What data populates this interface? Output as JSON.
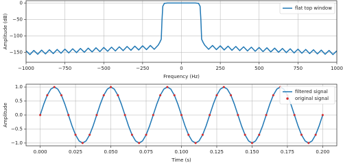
{
  "chart_data": [
    {
      "type": "line",
      "xlabel": "Frequency (Hz)",
      "ylabel": "Amplitude (dB)",
      "x": [
        -1000,
        -975,
        -950,
        -925,
        -900,
        -875,
        -850,
        -825,
        -800,
        -775,
        -750,
        -725,
        -700,
        -675,
        -650,
        -625,
        -600,
        -575,
        -550,
        -525,
        -500,
        -475,
        -450,
        -425,
        -400,
        -375,
        -350,
        -325,
        -300,
        -275,
        -250,
        -225,
        -200,
        -175,
        -150,
        -140,
        -130,
        -125,
        -120,
        -110,
        -90,
        0,
        90,
        110,
        120,
        125,
        130,
        140,
        150,
        175,
        200,
        225,
        250,
        275,
        300,
        325,
        350,
        375,
        400,
        425,
        450,
        475,
        500,
        525,
        550,
        575,
        600,
        625,
        650,
        675,
        700,
        725,
        750,
        775,
        800,
        825,
        850,
        875,
        900,
        925,
        950,
        975,
        1000
      ],
      "series": [
        {
          "name": "flat top window",
          "color": "#1f77b4",
          "values": [
            -145,
            -156.5,
            -144,
            -155.5,
            -143,
            -154.5,
            -142,
            -153.5,
            -141,
            -152.5,
            -140,
            -151.5,
            -139,
            -150.5,
            -138,
            -149.5,
            -137,
            -148.5,
            -136,
            -147.5,
            -135,
            -146.5,
            -134,
            -145.5,
            -133,
            -144.5,
            -132,
            -143.5,
            -131,
            -142.5,
            -130,
            -141.5,
            -129,
            -140.5,
            -128,
            -120,
            -110,
            -50,
            -10,
            -1,
            0,
            0,
            0,
            -1,
            -10,
            -50,
            -110,
            -120,
            -128,
            -140.5,
            -129,
            -141.5,
            -130,
            -142.5,
            -131,
            -143.5,
            -132,
            -144.5,
            -133,
            -145.5,
            -134,
            -146.5,
            -135,
            -147.5,
            -136,
            -148.5,
            -137,
            -149.5,
            -138,
            -150.5,
            -139,
            -151.5,
            -140,
            -152.5,
            -141,
            -153.5,
            -142,
            -154.5,
            -143,
            -155.5,
            -144,
            -156.5,
            -145
          ]
        }
      ],
      "xlim": [
        -1000,
        1000
      ],
      "ylim": [
        -180,
        7
      ],
      "xticks": [
        {
          "value": -1000,
          "label": "−1000"
        },
        {
          "value": -750,
          "label": "−750"
        },
        {
          "value": -500,
          "label": "−500"
        },
        {
          "value": -250,
          "label": "−250"
        },
        0,
        250,
        500,
        750,
        1000
      ],
      "yticks": [
        0,
        {
          "value": -50,
          "label": "−50"
        },
        {
          "value": -100,
          "label": "−100"
        },
        {
          "value": -150,
          "label": "−150"
        }
      ],
      "grid": true,
      "legend": "upper right"
    },
    {
      "type": "line",
      "xlabel": "Time (s)",
      "ylabel": "Amplitude",
      "series": [
        {
          "name": "filtered signal",
          "color": "#1f77b4",
          "style": "line",
          "x": [
            0,
            0.0025,
            0.005,
            0.0075,
            0.01,
            0.0125,
            0.015,
            0.0175,
            0.02,
            0.0225,
            0.025,
            0.0275,
            0.03,
            0.0325,
            0.035,
            0.0375,
            0.04,
            0.0425,
            0.045,
            0.0475,
            0.05,
            0.0525,
            0.055,
            0.0575,
            0.06,
            0.0625,
            0.065,
            0.0675,
            0.07,
            0.0725,
            0.075,
            0.0775,
            0.08,
            0.0825,
            0.085,
            0.0875,
            0.09,
            0.0925,
            0.095,
            0.0975,
            0.1,
            0.1025,
            0.105,
            0.1075,
            0.11,
            0.1125,
            0.115,
            0.1175,
            0.12,
            0.1225,
            0.125,
            0.1275,
            0.13,
            0.1325,
            0.135,
            0.1375,
            0.14,
            0.1425,
            0.145,
            0.1475,
            0.15,
            0.1525,
            0.155,
            0.1575,
            0.16,
            0.1625,
            0.165,
            0.1675,
            0.17,
            0.1725,
            0.175,
            0.1775,
            0.18,
            0.1825,
            0.185,
            0.1875,
            0.19,
            0.1925,
            0.195,
            0.1975,
            0.2
          ],
          "values": [
            0,
            0.383,
            0.707,
            0.924,
            1,
            0.924,
            0.707,
            0.383,
            0,
            -0.383,
            -0.707,
            -0.924,
            -1,
            -0.924,
            -0.707,
            -0.383,
            0,
            0.383,
            0.707,
            0.924,
            1,
            0.924,
            0.707,
            0.383,
            0,
            -0.383,
            -0.707,
            -0.924,
            -1,
            -0.924,
            -0.707,
            -0.383,
            0,
            0.383,
            0.707,
            0.924,
            1,
            0.924,
            0.707,
            0.383,
            0,
            -0.383,
            -0.707,
            -0.924,
            -1,
            -0.924,
            -0.707,
            -0.383,
            0,
            0.383,
            0.707,
            0.924,
            1,
            0.924,
            0.707,
            0.383,
            0,
            -0.383,
            -0.707,
            -0.924,
            -1,
            -0.924,
            -0.707,
            -0.383,
            0,
            0.383,
            0.707,
            0.924,
            1,
            0.924,
            0.707,
            0.383,
            0,
            -0.383,
            -0.707,
            -0.924,
            -1,
            -0.924,
            -0.707,
            -0.383,
            0
          ]
        },
        {
          "name": "original signal",
          "color": "#d62728",
          "style": "markers",
          "x": [
            0,
            0.005,
            0.01,
            0.015,
            0.02,
            0.025,
            0.03,
            0.035,
            0.04,
            0.045,
            0.05,
            0.055,
            0.06,
            0.065,
            0.07,
            0.075,
            0.08,
            0.085,
            0.09,
            0.095,
            0.1,
            0.105,
            0.11,
            0.115,
            0.12,
            0.125,
            0.13,
            0.135,
            0.14,
            0.145,
            0.15,
            0.155,
            0.16,
            0.165,
            0.17,
            0.175,
            0.18,
            0.185,
            0.19,
            0.195,
            0.2
          ],
          "values": [
            0,
            0.707,
            1,
            0.707,
            0,
            -0.707,
            -1,
            -0.707,
            0,
            0.707,
            1,
            0.707,
            0,
            -0.707,
            -1,
            -0.707,
            0,
            0.707,
            1,
            0.707,
            0,
            -0.707,
            -1,
            -0.707,
            0,
            0.707,
            1,
            0.707,
            0,
            -0.707,
            -1,
            -0.707,
            0,
            0.707,
            1,
            0.707,
            0,
            -0.707,
            -1,
            -0.707,
            0
          ]
        }
      ],
      "xlim": [
        -0.01,
        0.21
      ],
      "ylim": [
        -1.1,
        1.1
      ],
      "xticks": [
        {
          "value": 0,
          "label": "0.000"
        },
        {
          "value": 0.025,
          "label": "0.025"
        },
        {
          "value": 0.05,
          "label": "0.050"
        },
        {
          "value": 0.075,
          "label": "0.075"
        },
        {
          "value": 0.1,
          "label": "0.100"
        },
        {
          "value": 0.125,
          "label": "0.125"
        },
        {
          "value": 0.15,
          "label": "0.150"
        },
        {
          "value": 0.175,
          "label": "0.175"
        },
        {
          "value": 0.2,
          "label": "0.200"
        }
      ],
      "yticks": [
        {
          "value": 1,
          "label": "1.0"
        },
        {
          "value": 0.5,
          "label": "0.5"
        },
        {
          "value": 0,
          "label": "0.0"
        },
        {
          "value": -0.5,
          "label": "−0.5"
        },
        {
          "value": -1,
          "label": "−1.0"
        }
      ],
      "grid": true,
      "legend": "upper right"
    }
  ]
}
